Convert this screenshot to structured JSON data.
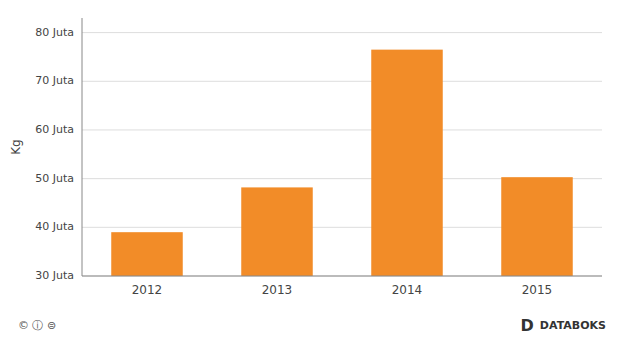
{
  "chart_data": {
    "type": "bar",
    "categories": [
      "2012",
      "2013",
      "2014",
      "2015"
    ],
    "values": [
      39.0,
      48.2,
      76.5,
      50.3
    ],
    "color": "#F28C28",
    "ylabel": "Kg",
    "ylim": [
      30,
      83
    ],
    "yticks": [
      {
        "value": 30,
        "label": "30 Juta"
      },
      {
        "value": 40,
        "label": "40 Juta"
      },
      {
        "value": 50,
        "label": "50 Juta"
      },
      {
        "value": 60,
        "label": "60 Juta"
      },
      {
        "value": 70,
        "label": "70 Juta"
      },
      {
        "value": 80,
        "label": "80 Juta"
      }
    ],
    "grid": true,
    "annotations": [
      "©  ⓘ  ⊜",
      "D",
      "DATABOKS"
    ]
  }
}
